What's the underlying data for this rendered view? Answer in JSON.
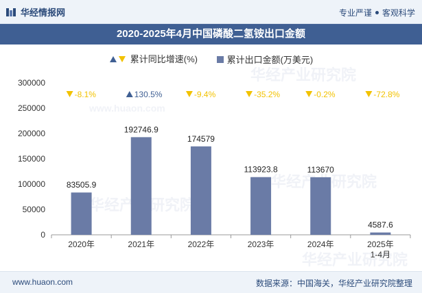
{
  "header": {
    "brand": "华经情报网",
    "tagline_left": "专业严谨",
    "tagline_right": "客观科学"
  },
  "title": "2020-2025年4月中国磷酸二氢铵出口金额",
  "legend": {
    "growth": "累计同比增速(%)",
    "amount": "累计出口金额(万美元)"
  },
  "colors": {
    "bar": "#6a7ba6",
    "up": "#3f5f93",
    "down": "#f2c200",
    "title_bg": "#3f5f93"
  },
  "chart_data": {
    "type": "bar",
    "categories": [
      "2020年",
      "2021年",
      "2022年",
      "2023年",
      "2024年",
      "2025年\n1-4月"
    ],
    "series": [
      {
        "name": "累计出口金额(万美元)",
        "values": [
          83505.9,
          192746.9,
          174579,
          113923.8,
          113670,
          4587.6
        ]
      },
      {
        "name": "累计同比增速(%)",
        "values": [
          -8.1,
          130.5,
          -9.4,
          -35.2,
          -0.2,
          -72.8
        ]
      }
    ],
    "value_labels": [
      "83505.9",
      "192746.9",
      "174579",
      "113923.8",
      "113670",
      "4587.6"
    ],
    "growth_labels": [
      "-8.1%",
      "130.5%",
      "-9.4%",
      "-35.2%",
      "-0.2%",
      "-72.8%"
    ],
    "yticks": [
      "0",
      "50000",
      "100000",
      "150000",
      "200000",
      "250000",
      "300000"
    ],
    "ylim": [
      0,
      300000
    ]
  },
  "watermarks": [
    "华经产业研究院",
    "www.huaon.com"
  ],
  "footer": {
    "website": "www.huaon.com",
    "source": "数据来源：中国海关，华经产业研究院整理"
  }
}
